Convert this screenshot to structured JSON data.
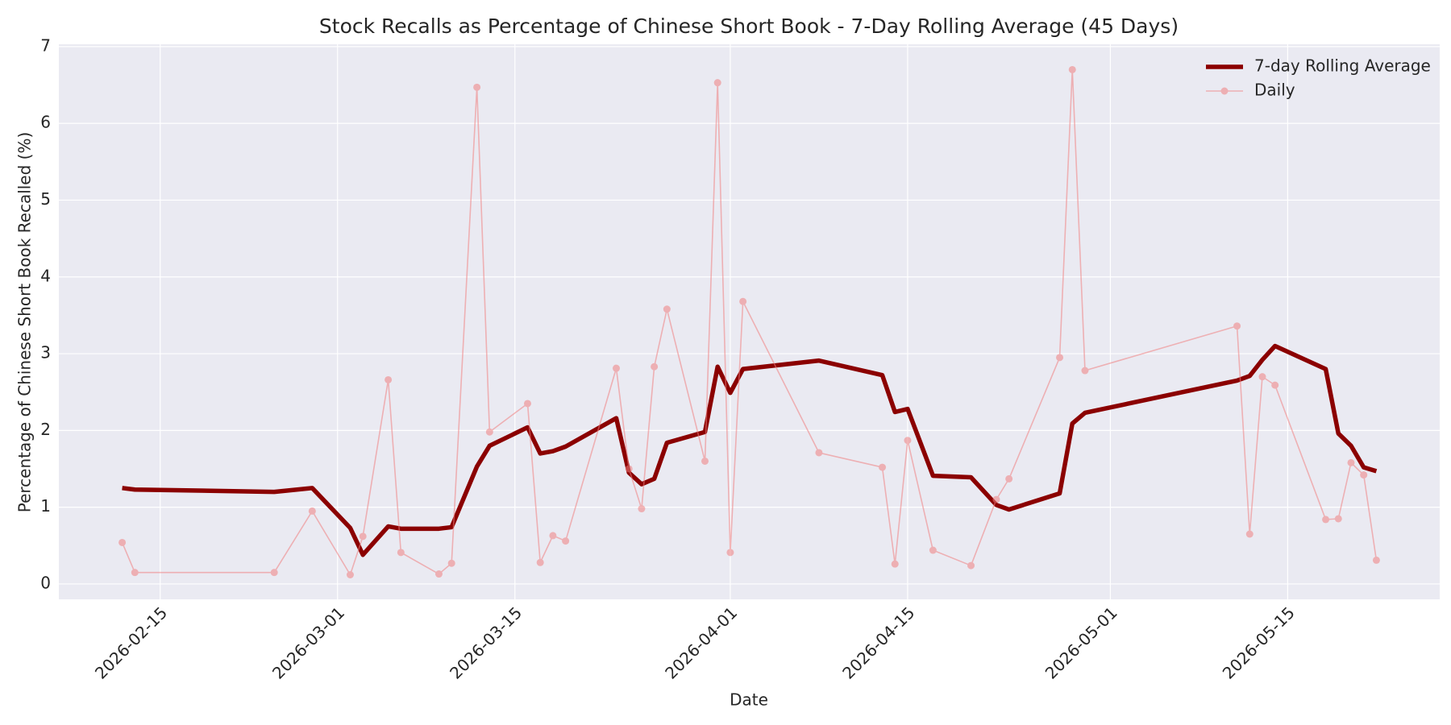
{
  "chart_data": {
    "type": "line",
    "title": "Stock Recalls as Percentage of Chinese Short Book - 7-Day Rolling Average (45 Days)",
    "x_label": "Date",
    "y_label": "Percentage of Chinese Short Book Recalled (%)",
    "x": [
      "2026-02-12",
      "2026-02-13",
      "2026-02-24",
      "2026-02-27",
      "2026-03-02",
      "2026-03-03",
      "2026-03-05",
      "2026-03-06",
      "2026-03-09",
      "2026-03-10",
      "2026-03-12",
      "2026-03-13",
      "2026-03-16",
      "2026-03-17",
      "2026-03-18",
      "2026-03-19",
      "2026-03-23",
      "2026-03-24",
      "2026-03-25",
      "2026-03-26",
      "2026-03-27",
      "2026-03-30",
      "2026-03-31",
      "2026-04-01",
      "2026-04-02",
      "2026-04-08",
      "2026-04-13",
      "2026-04-14",
      "2026-04-15",
      "2026-04-17",
      "2026-04-20",
      "2026-04-22",
      "2026-04-23",
      "2026-04-27",
      "2026-04-28",
      "2026-04-29",
      "2026-05-11",
      "2026-05-12",
      "2026-05-13",
      "2026-05-14",
      "2026-05-18",
      "2026-05-19",
      "2026-05-20",
      "2026-05-21",
      "2026-05-22"
    ],
    "series": [
      {
        "name": "7-day Rolling Average",
        "color": "#8b0000",
        "line_width": 5.5,
        "marker": false,
        "values": [
          1.25,
          1.23,
          1.2,
          1.25,
          0.73,
          0.38,
          0.75,
          0.72,
          0.72,
          0.74,
          1.53,
          1.8,
          2.04,
          1.7,
          1.73,
          1.79,
          2.16,
          1.45,
          1.3,
          1.37,
          1.84,
          1.98,
          2.83,
          2.49,
          2.8,
          2.91,
          2.72,
          2.24,
          2.28,
          1.41,
          1.39,
          1.03,
          0.97,
          1.18,
          2.09,
          2.23,
          2.65,
          2.71,
          2.92,
          3.1,
          2.8,
          1.96,
          1.8,
          1.52,
          1.47
        ]
      },
      {
        "name": "Daily",
        "color": "#f08080",
        "line_width": 1.6,
        "marker": true,
        "opacity": 0.55,
        "values": [
          0.54,
          0.15,
          0.15,
          0.95,
          0.12,
          0.62,
          2.66,
          0.41,
          0.13,
          0.27,
          6.47,
          1.98,
          2.35,
          0.28,
          0.63,
          0.56,
          2.81,
          1.5,
          0.98,
          2.83,
          3.58,
          1.6,
          6.53,
          0.41,
          3.68,
          1.71,
          1.52,
          0.26,
          1.87,
          0.44,
          0.24,
          1.1,
          1.37,
          2.95,
          6.7,
          2.78,
          3.36,
          0.65,
          2.7,
          2.59,
          0.84,
          0.85,
          1.58,
          1.42,
          0.31
        ]
      }
    ],
    "xlim": [
      "2026-02-07",
      "2026-05-27"
    ],
    "xticks": [
      "2026-02-15",
      "2026-03-01",
      "2026-03-15",
      "2026-04-01",
      "2026-04-15",
      "2026-05-01",
      "2026-05-15"
    ],
    "ylim": [
      -0.2,
      7.03
    ],
    "yticks": [
      0,
      1,
      2,
      3,
      4,
      5,
      6,
      7
    ],
    "grid": true,
    "legend": "upper right"
  }
}
